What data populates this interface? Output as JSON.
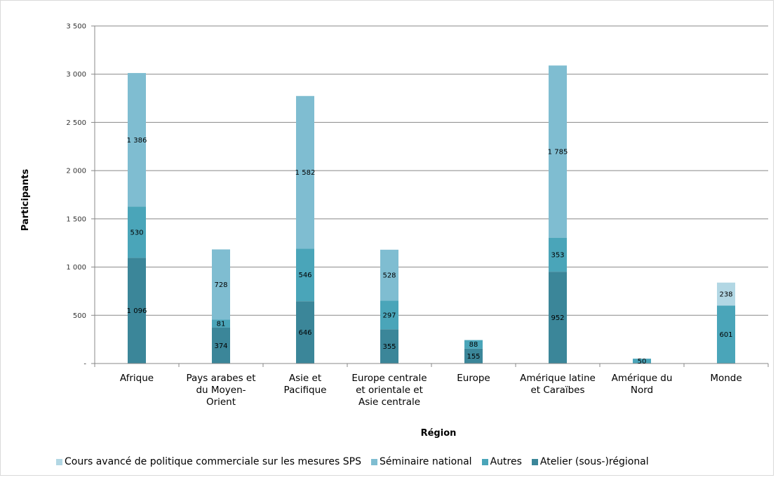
{
  "chart_data": {
    "type": "bar",
    "stacked": true,
    "title": "",
    "xlabel": "Région",
    "ylabel": "Participants",
    "ylim": [
      0,
      3500
    ],
    "yticks": [
      0,
      500,
      1000,
      1500,
      2000,
      2500,
      3000,
      3500
    ],
    "ytick_labels": [
      "-",
      "500",
      "1 000",
      "1 500",
      "2 000",
      "2 500",
      "3 000",
      "3 500"
    ],
    "grid": true,
    "legend_position": "bottom",
    "categories": [
      [
        "Afrique"
      ],
      [
        "Pays arabes et",
        "du Moyen-",
        "Orient"
      ],
      [
        "Asie et",
        "Pacifique"
      ],
      [
        "Europe centrale",
        "et orientale et",
        "Asie centrale"
      ],
      [
        "Europe"
      ],
      [
        "Amérique latine",
        "et Caraïbes"
      ],
      [
        "Amérique du",
        "Nord"
      ],
      [
        "Monde"
      ]
    ],
    "series": [
      {
        "name": "Atelier (sous-)régional",
        "color": "#3b8699",
        "values": [
          1096,
          374,
          646,
          355,
          155,
          952,
          0,
          0
        ],
        "labels": [
          "1 096",
          "374",
          "646",
          "355",
          "155",
          "952",
          "",
          ""
        ]
      },
      {
        "name": "Autres",
        "color": "#4aa5b9",
        "values": [
          530,
          81,
          546,
          297,
          88,
          353,
          50,
          601
        ],
        "labels": [
          "530",
          "81",
          "546",
          "297",
          "88",
          "353",
          "50",
          "601"
        ]
      },
      {
        "name": "Séminaire national",
        "color": "#7fbdd1",
        "values": [
          1386,
          728,
          1582,
          528,
          0,
          1785,
          0,
          0
        ],
        "labels": [
          "1 386",
          "728",
          "1 582",
          "528",
          "",
          "1 785",
          "",
          ""
        ]
      },
      {
        "name": "Cours avancé de politique commerciale sur les mesures SPS",
        "color": "#b2d7e4",
        "values": [
          0,
          0,
          0,
          0,
          0,
          0,
          0,
          238
        ],
        "labels": [
          "",
          "",
          "",
          "",
          "",
          "",
          "",
          "238"
        ]
      }
    ],
    "legend_order": [
      3,
      2,
      1,
      0
    ]
  }
}
